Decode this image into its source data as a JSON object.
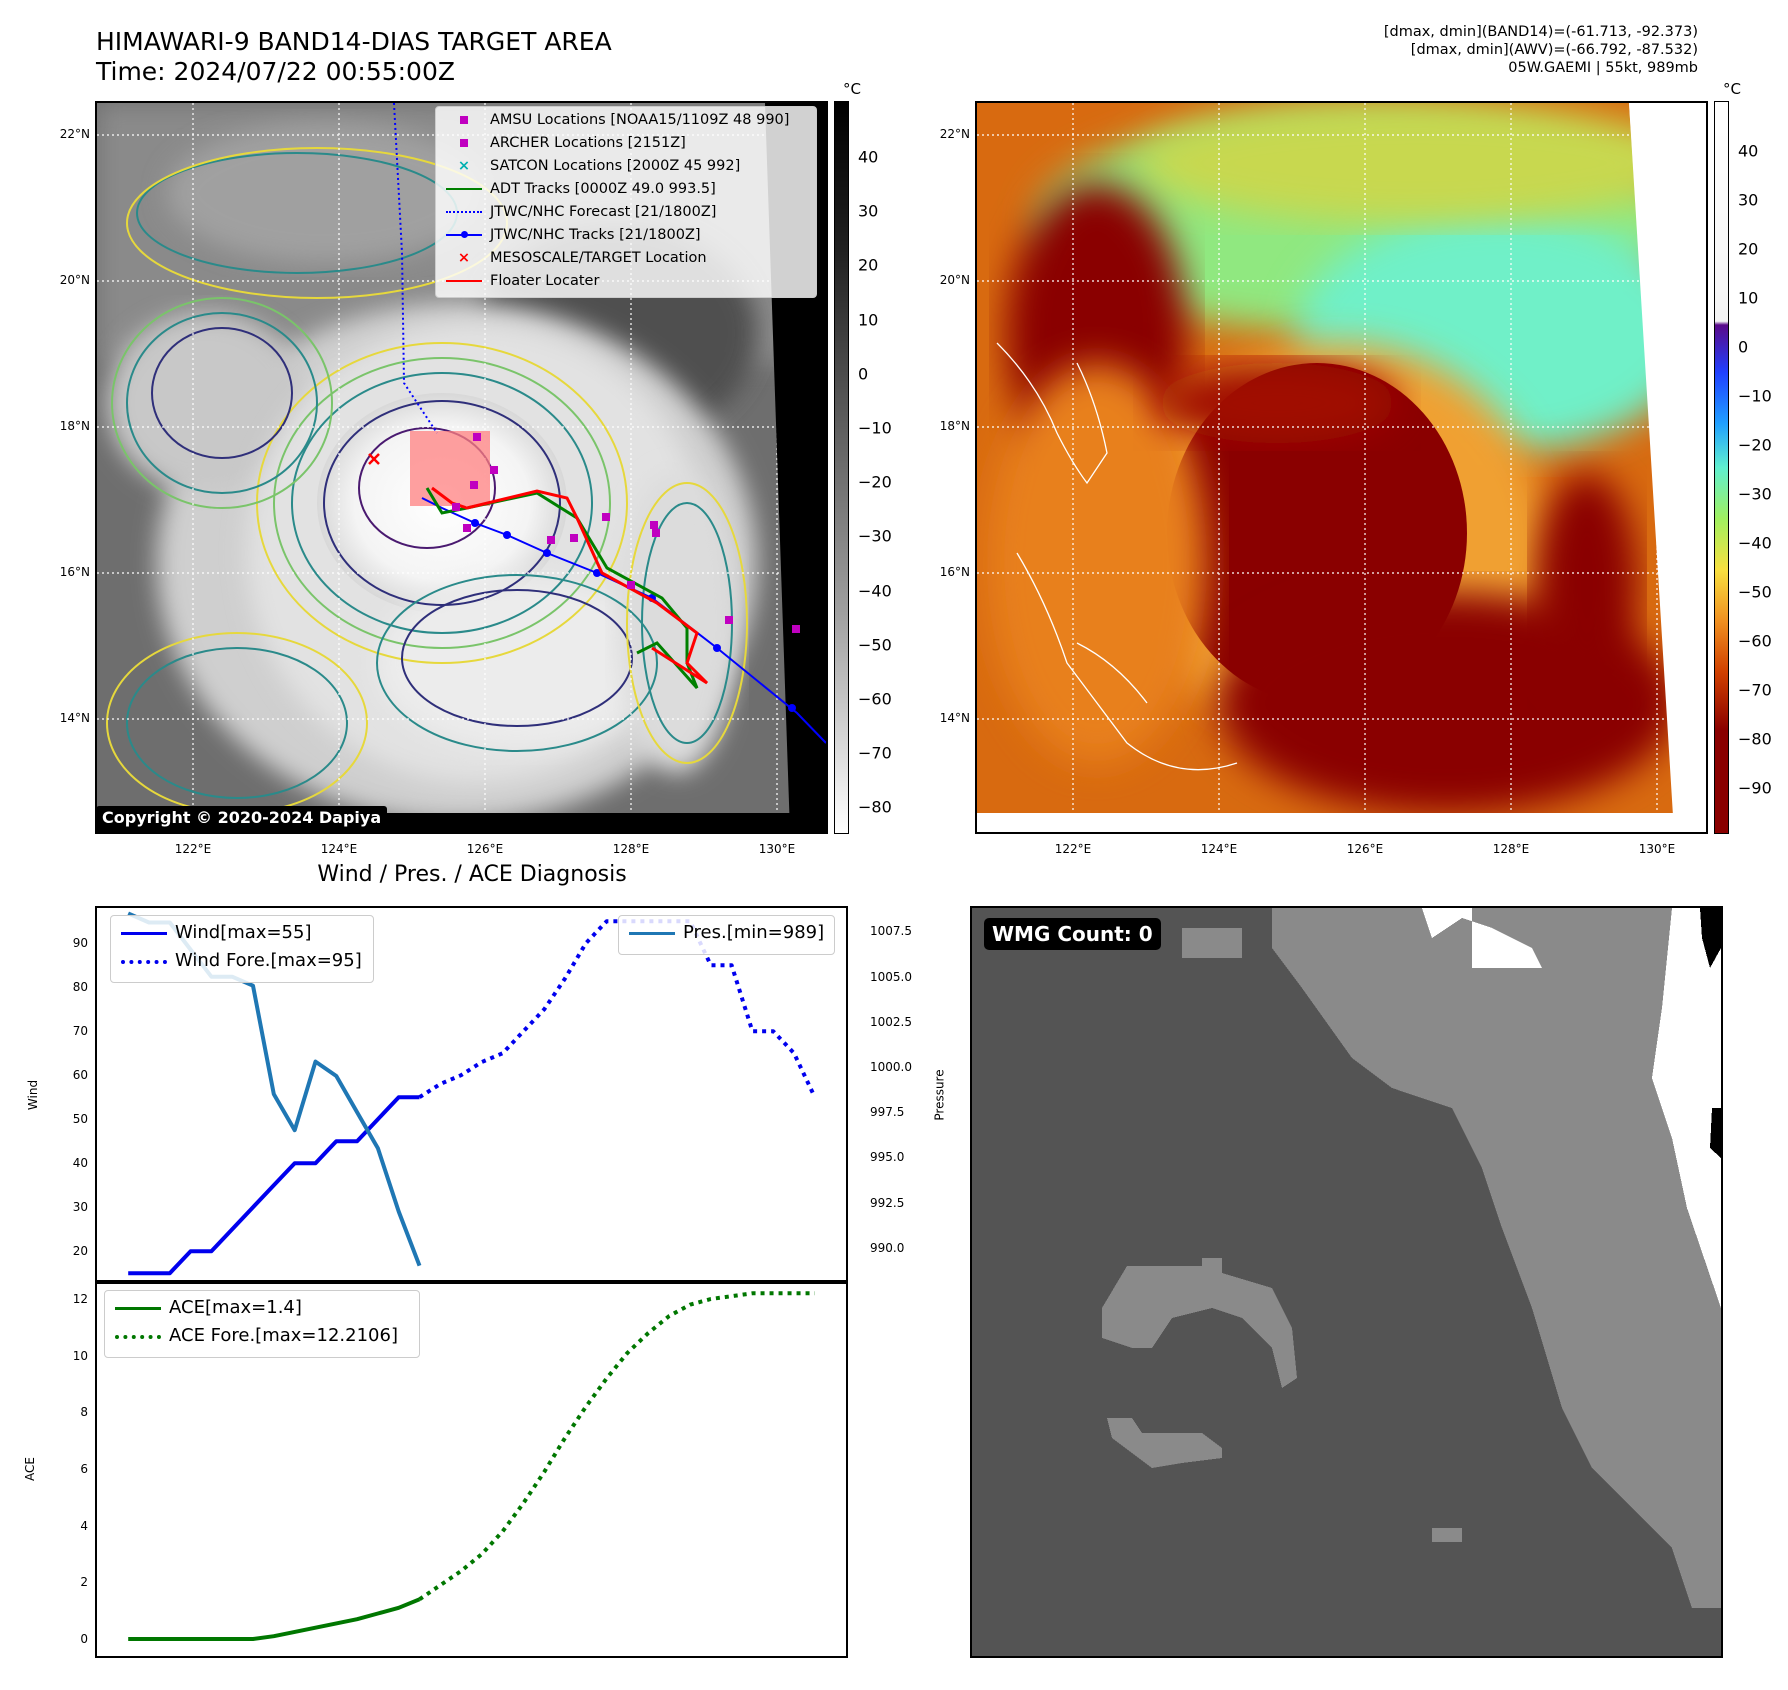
{
  "header": {
    "title_line1": "HIMAWARI-9 BAND14-DIAS TARGET AREA",
    "title_line2": "Time: 2024/07/22 00:55:00Z",
    "info_line1": "[dmax, dmin](BAND14)=(-61.713, -92.373)",
    "info_line2": "[dmax, dmin](AWV)=(-66.792, -87.532)",
    "info_line3": "05W.GAEMI | 55kt, 989mb"
  },
  "map_axes": {
    "lat_labels": [
      "22°N",
      "20°N",
      "18°N",
      "16°N",
      "14°N"
    ],
    "lon_labels": [
      "122°E",
      "124°E",
      "126°E",
      "128°E",
      "130°E"
    ]
  },
  "ir_colorbar": {
    "unit": "°C",
    "ticks": [
      "40",
      "30",
      "20",
      "10",
      "0",
      "−10",
      "−20",
      "−30",
      "−40",
      "−50",
      "−60",
      "−70",
      "−80"
    ]
  },
  "wv_colorbar": {
    "unit": "°C",
    "ticks": [
      "40",
      "30",
      "20",
      "10",
      "0",
      "−10",
      "−20",
      "−30",
      "−40",
      "−50",
      "−60",
      "−70",
      "−80",
      "−90"
    ]
  },
  "map_legend": {
    "items": [
      {
        "label": "AMSU Locations [NOAA15/1109Z 48 990]",
        "color": "#c000c0"
      },
      {
        "label": "ARCHER Locations [2151Z]",
        "color": "#c000c0"
      },
      {
        "label": "SATCON Locations [2000Z 45 992]",
        "color": "#00b0b0"
      },
      {
        "label": "ADT Tracks [0000Z 49.0 993.5]",
        "color": "#008000"
      },
      {
        "label": "JTWC/NHC Forecast [21/1800Z]",
        "color": "#0000ff"
      },
      {
        "label": "JTWC/NHC Tracks [21/1800Z]",
        "color": "#0000ff"
      },
      {
        "label": "MESOSCALE/TARGET Location",
        "color": "#ff0000"
      },
      {
        "label": "Floater Locater",
        "color": "#ff0000"
      }
    ]
  },
  "copyright": "Copyright © 2020-2024 Dapiya",
  "wmg": {
    "label": "WMG Count: 0"
  },
  "chart_data": [
    {
      "type": "line",
      "title": "Wind / Pres. / ACE Diagnosis",
      "ylabel": "Wind",
      "y2label": "Pressure",
      "ylim": [
        13,
        98
      ],
      "y2lim": [
        988.1,
        1008.8
      ],
      "yticks": [
        20,
        30,
        40,
        50,
        60,
        70,
        80,
        90
      ],
      "y2ticks": [
        "1007.5",
        "1005.0",
        "1002.5",
        "1000.0",
        "997.5",
        "995.0",
        "992.5",
        "990.0"
      ],
      "xlim": [
        -1.5,
        34.5
      ],
      "series": [
        {
          "name": "Wind[max=55]",
          "color": "#0000ee",
          "style": "solid",
          "x": [
            0,
            1,
            2,
            3,
            4,
            5,
            6,
            7,
            8,
            9,
            10,
            11,
            12,
            13,
            14
          ],
          "y": [
            15,
            15,
            15,
            20,
            20,
            25,
            30,
            35,
            40,
            40,
            45,
            45,
            50,
            55,
            55
          ]
        },
        {
          "name": "Wind Fore.[max=95]",
          "color": "#0000ee",
          "style": "dotted",
          "x": [
            14,
            15,
            16,
            17,
            18,
            19,
            20,
            21,
            22,
            23,
            24,
            25,
            26,
            27,
            28,
            29,
            30,
            31,
            32,
            33
          ],
          "y": [
            55,
            58,
            60,
            63,
            65,
            70,
            75,
            82,
            90,
            95,
            95,
            95,
            95,
            95,
            85,
            85,
            70,
            70,
            65,
            55
          ]
        },
        {
          "name": "Pres.[min=989]",
          "color": "#1f77b4",
          "style": "solid",
          "axis": "right",
          "x": [
            0,
            1,
            2,
            3,
            4,
            5,
            6,
            7,
            8,
            9,
            10,
            11,
            12,
            13,
            14
          ],
          "y": [
            1008.5,
            1008,
            1008,
            1006.5,
            1005,
            1005,
            1004.5,
            998.5,
            996.5,
            1000.3,
            999.5,
            997.5,
            995.5,
            992,
            989
          ]
        },
        {
          "name": "Wind Fore.dot",
          "legend": false,
          "color": "#0000ee",
          "style": "dotted",
          "x": [],
          "y": []
        }
      ]
    },
    {
      "type": "line",
      "ylabel": "ACE",
      "ylim": [
        -0.6,
        12.6
      ],
      "yticks": [
        0,
        2,
        4,
        6,
        8,
        10,
        12
      ],
      "xlim": [
        -1.5,
        34.5
      ],
      "series": [
        {
          "name": "ACE[max=1.4]",
          "color": "#007700",
          "style": "solid",
          "x": [
            0,
            1,
            2,
            3,
            4,
            5,
            6,
            7,
            8,
            9,
            10,
            11,
            12,
            13,
            14
          ],
          "y": [
            0,
            0,
            0,
            0,
            0,
            0,
            0,
            0.1,
            0.25,
            0.4,
            0.55,
            0.7,
            0.9,
            1.1,
            1.4
          ]
        },
        {
          "name": "ACE Fore.[max=12.2106]",
          "color": "#007700",
          "style": "dotted",
          "x": [
            14,
            15,
            16,
            17,
            18,
            19,
            20,
            21,
            22,
            23,
            24,
            25,
            26,
            27,
            28,
            29,
            30,
            31,
            32,
            33
          ],
          "y": [
            1.4,
            1.9,
            2.4,
            3.0,
            3.8,
            4.8,
            5.9,
            7.1,
            8.2,
            9.2,
            10.1,
            10.8,
            11.4,
            11.8,
            12.0,
            12.1,
            12.2,
            12.2,
            12.2,
            12.2
          ]
        }
      ]
    }
  ]
}
